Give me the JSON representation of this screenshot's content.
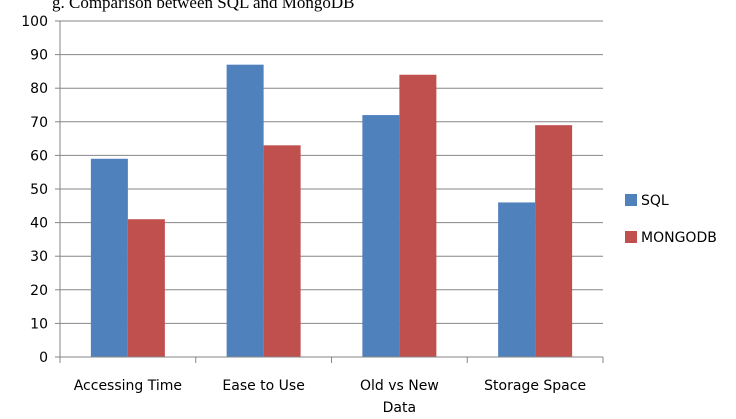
{
  "caption": "g. Comparison between SQL and MongoDB",
  "chart_data": {
    "type": "bar",
    "categories": [
      "Accessing Time",
      "Ease to Use",
      "Old vs New Data",
      "Storage Space"
    ],
    "category_label_lines": [
      [
        "Accessing Time"
      ],
      [
        "Ease to Use"
      ],
      [
        "Old vs New",
        "Data"
      ],
      [
        "Storage Space"
      ]
    ],
    "series": [
      {
        "name": "SQL",
        "values": [
          59,
          87,
          72,
          46
        ],
        "color": "#4F81BD"
      },
      {
        "name": "MONGODB",
        "values": [
          41,
          63,
          84,
          69
        ],
        "color": "#C0504D"
      }
    ],
    "ylim": [
      0,
      100
    ],
    "yticks": [
      0,
      10,
      20,
      30,
      40,
      50,
      60,
      70,
      80,
      90,
      100
    ],
    "grid": true,
    "legend": "right"
  }
}
